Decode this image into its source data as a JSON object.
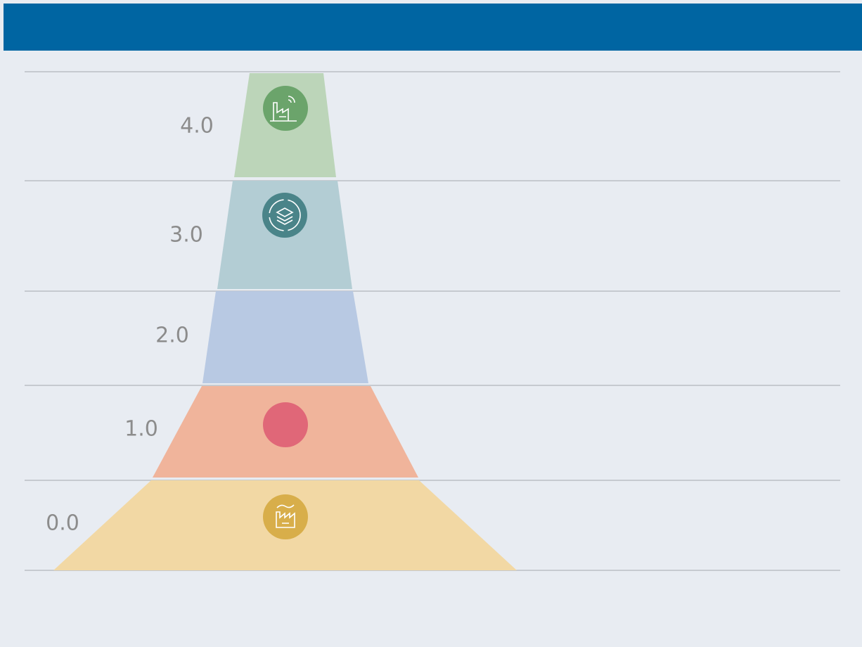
{
  "levels": [
    {
      "label": "4.0"
    },
    {
      "label": "3.0"
    },
    {
      "label": "2.0"
    },
    {
      "label": "1.0"
    },
    {
      "label": "0.0"
    }
  ]
}
